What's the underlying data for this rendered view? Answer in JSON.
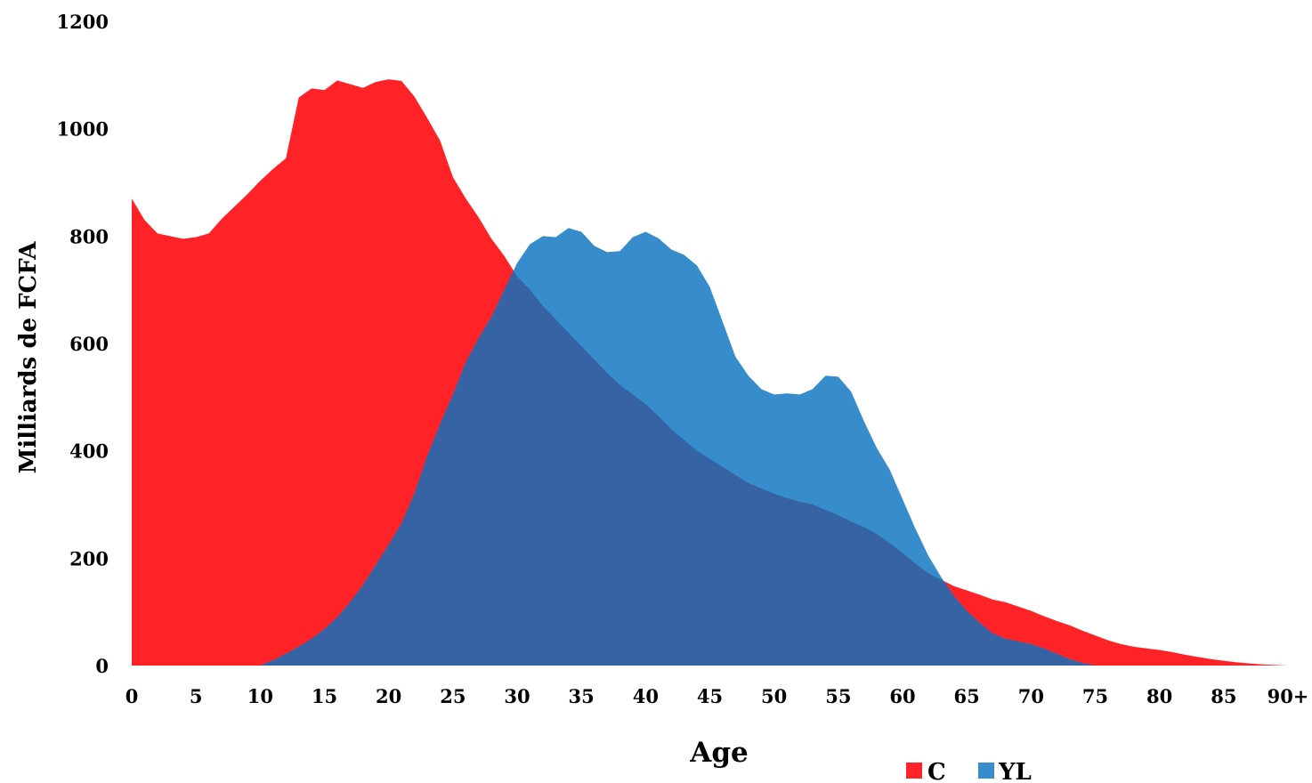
{
  "chart_data": {
    "type": "area",
    "xlabel": "Age",
    "ylabel": "Milliards de FCFA",
    "ylim": [
      0,
      1200
    ],
    "xlim": [
      0,
      90
    ],
    "grid": false,
    "legend_placement": "bottom-right",
    "x_tick_labels": [
      "0",
      "5",
      "10",
      "15",
      "20",
      "25",
      "30",
      "35",
      "40",
      "45",
      "50",
      "55",
      "60",
      "65",
      "70",
      "75",
      "80",
      "85",
      "90+"
    ],
    "y_tick_labels": [
      "0",
      "200",
      "400",
      "600",
      "800",
      "1000",
      "1200"
    ],
    "x": [
      0,
      1,
      2,
      3,
      4,
      5,
      6,
      7,
      8,
      9,
      10,
      11,
      12,
      13,
      14,
      15,
      16,
      17,
      18,
      19,
      20,
      21,
      22,
      23,
      24,
      25,
      26,
      27,
      28,
      29,
      30,
      31,
      32,
      33,
      34,
      35,
      36,
      37,
      38,
      39,
      40,
      41,
      42,
      43,
      44,
      45,
      46,
      47,
      48,
      49,
      50,
      51,
      52,
      53,
      54,
      55,
      56,
      57,
      58,
      59,
      60,
      61,
      62,
      63,
      64,
      65,
      66,
      67,
      68,
      69,
      70,
      71,
      72,
      73,
      74,
      75,
      76,
      77,
      78,
      79,
      80,
      81,
      82,
      83,
      84,
      85,
      86,
      87,
      88,
      89,
      90
    ],
    "series": [
      {
        "name": "C",
        "color": "#ff2226",
        "values": [
          870,
          830,
          805,
          800,
          795,
          798,
          805,
          832,
          855,
          878,
          903,
          925,
          945,
          1058,
          1075,
          1072,
          1090,
          1083,
          1076,
          1087,
          1092,
          1089,
          1060,
          1020,
          978,
          910,
          870,
          835,
          795,
          763,
          725,
          700,
          670,
          645,
          620,
          595,
          570,
          545,
          523,
          505,
          487,
          465,
          440,
          420,
          400,
          385,
          370,
          355,
          340,
          330,
          320,
          312,
          305,
          300,
          290,
          280,
          268,
          258,
          245,
          228,
          210,
          190,
          172,
          160,
          148,
          140,
          132,
          123,
          118,
          110,
          102,
          92,
          83,
          75,
          65,
          56,
          47,
          40,
          35,
          32,
          29,
          25,
          20,
          16,
          12,
          9,
          6,
          4,
          2,
          1,
          0
        ]
      },
      {
        "name": "YL",
        "color": "#378dcb",
        "values": [
          0,
          0,
          0,
          0,
          0,
          0,
          0,
          0,
          0,
          0,
          0,
          10,
          22,
          35,
          50,
          68,
          90,
          118,
          150,
          188,
          225,
          265,
          320,
          390,
          450,
          505,
          565,
          610,
          650,
          700,
          750,
          785,
          800,
          798,
          815,
          808,
          782,
          770,
          772,
          798,
          808,
          796,
          775,
          765,
          745,
          705,
          640,
          575,
          540,
          515,
          505,
          507,
          505,
          515,
          540,
          538,
          510,
          455,
          405,
          365,
          310,
          255,
          205,
          165,
          130,
          102,
          80,
          60,
          50,
          45,
          40,
          32,
          22,
          12,
          5,
          0,
          0,
          0,
          0,
          0,
          0,
          0,
          0,
          0,
          0,
          0,
          0,
          0,
          0,
          0,
          0
        ]
      }
    ],
    "overlap_color": "#3563a3"
  },
  "legend": [
    {
      "label": "C",
      "color": "#ff2226"
    },
    {
      "label": "YL",
      "color": "#378dcb"
    }
  ]
}
